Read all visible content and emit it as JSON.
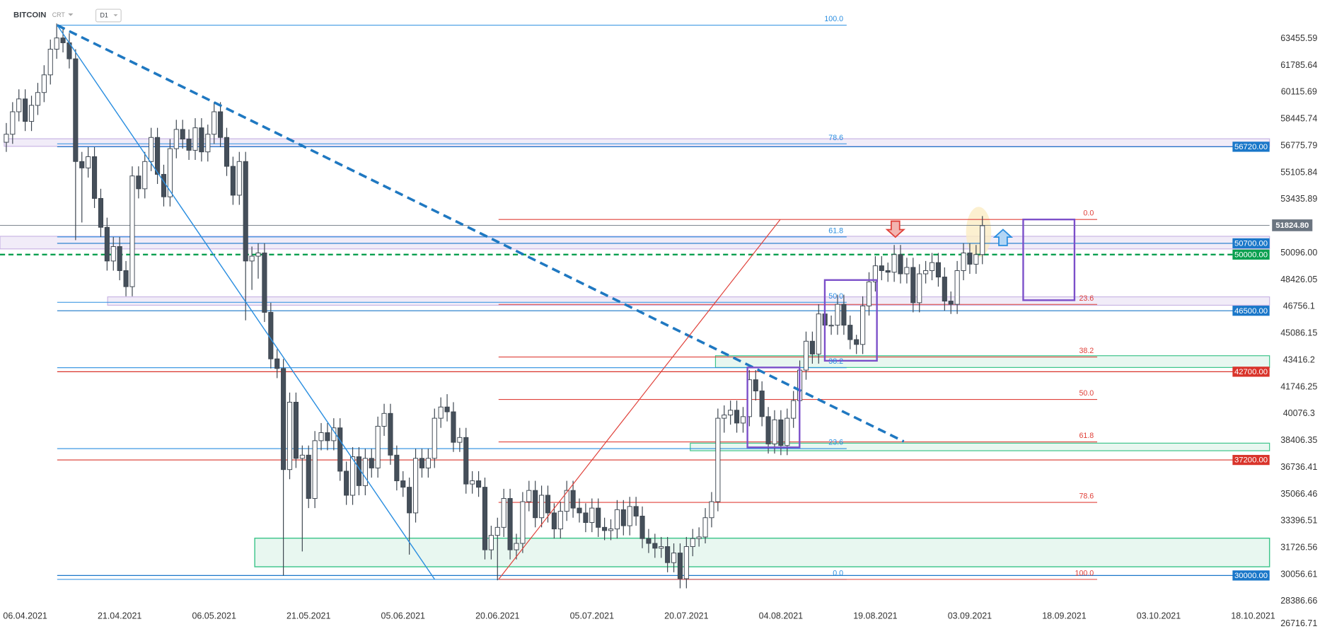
{
  "chart_data": {
    "type": "candlestick",
    "title": "BITCOIN",
    "instrument_type": "CRT",
    "interval": "D1",
    "up_color": "#ffffff",
    "down_color": "#454f5a",
    "wick_color": "#3d4650",
    "xlim": [
      -4,
      197.6
    ],
    "ylim": [
      26716.71,
      65866
    ],
    "xticks": [
      {
        "value": 0,
        "label": "06.04.2021"
      },
      {
        "value": 15,
        "label": "21.04.2021"
      },
      {
        "value": 30,
        "label": "06.05.2021"
      },
      {
        "value": 45,
        "label": "21.05.2021"
      },
      {
        "value": 60,
        "label": "05.06.2021"
      },
      {
        "value": 75,
        "label": "20.06.2021"
      },
      {
        "value": 90,
        "label": "05.07.2021"
      },
      {
        "value": 105,
        "label": "20.07.2021"
      },
      {
        "value": 120,
        "label": "04.08.2021"
      },
      {
        "value": 135,
        "label": "19.08.2021"
      },
      {
        "value": 150,
        "label": "03.09.2021"
      },
      {
        "value": 165,
        "label": "18.09.2021"
      },
      {
        "value": 180,
        "label": "03.10.2021"
      },
      {
        "value": 195,
        "label": "18.10.2021"
      }
    ],
    "yticks": [
      63455.59,
      61785.64,
      60115.69,
      58445.74,
      56775.79,
      55105.84,
      53435.89,
      {
        "value": 50096,
        "label": "50096.00"
      },
      48426.05,
      46756.1,
      45086.15,
      43416.2,
      41746.25,
      40076.3,
      38406.35,
      36736.41,
      35066.46,
      33396.51,
      31726.56,
      30056.61,
      28386.66,
      26716.71
    ],
    "last_price": {
      "value": 51824.8,
      "label": "51824.80",
      "color": "#6b7580"
    },
    "levels": [
      {
        "value": 56720,
        "label": "56720.00",
        "color": "#1a77c9"
      },
      {
        "value": 50700,
        "label": "50700.00",
        "color": "#1a77c9"
      },
      {
        "value": 50000,
        "label": "50000.00",
        "color": "#0aa050",
        "dashed": true
      },
      {
        "value": 46500,
        "label": "46500.00",
        "color": "#1a77c9"
      },
      {
        "value": 42700,
        "label": "42700.00",
        "color": "#d9342b"
      },
      {
        "value": 37200,
        "label": "37200.00",
        "color": "#d9342b"
      },
      {
        "value": 30000,
        "label": "30000.00",
        "color": "#1a77c9"
      }
    ],
    "fib_blue": {
      "color": "#2a8ee0",
      "levels": [
        {
          "label": "100.0",
          "value": 64294
        },
        {
          "label": "78.6",
          "value": 56903
        },
        {
          "label": "61.8",
          "value": 51101
        },
        {
          "label": "50.0",
          "value": 47025
        },
        {
          "label": "38.2",
          "value": 42950
        },
        {
          "label": "23.6",
          "value": 37907
        },
        {
          "label": "0.0",
          "value": 29756
        }
      ]
    },
    "fib_red": {
      "color": "#e0413a",
      "levels": [
        {
          "label": "0.0",
          "value": 52187
        },
        {
          "label": "23.6",
          "value": 46893
        },
        {
          "label": "38.2",
          "value": 43618
        },
        {
          "label": "50.0",
          "value": 40972
        },
        {
          "label": "61.8",
          "value": 38325
        },
        {
          "label": "78.6",
          "value": 34556
        },
        {
          "label": "100.0",
          "value": 29756
        }
      ]
    },
    "x": [
      -3,
      -2,
      -1,
      0,
      1,
      2,
      3,
      4,
      5,
      6,
      7,
      8,
      9,
      10,
      11,
      12,
      13,
      14,
      15,
      16,
      17,
      18,
      19,
      20,
      21,
      22,
      23,
      24,
      25,
      26,
      27,
      28,
      29,
      30,
      31,
      32,
      33,
      34,
      35,
      36,
      37,
      38,
      39,
      40,
      41,
      42,
      43,
      44,
      45,
      46,
      47,
      48,
      49,
      50,
      51,
      52,
      53,
      54,
      55,
      56,
      57,
      58,
      59,
      60,
      61,
      62,
      63,
      64,
      65,
      66,
      67,
      68,
      69,
      70,
      71,
      72,
      73,
      74,
      75,
      76,
      77,
      78,
      79,
      80,
      81,
      82,
      83,
      84,
      85,
      86,
      87,
      88,
      89,
      90,
      91,
      92,
      93,
      94,
      95,
      96,
      97,
      98,
      99,
      100,
      101,
      102,
      103,
      104,
      105,
      106,
      107,
      108,
      109,
      110,
      111,
      112,
      113,
      114,
      115,
      116,
      117,
      118,
      119,
      120,
      121,
      122,
      123,
      124,
      125,
      126,
      127,
      128,
      129,
      130,
      131,
      132,
      133,
      134,
      135,
      136,
      137,
      138,
      139,
      140,
      141,
      142,
      143,
      144,
      145,
      146,
      147,
      148,
      149,
      150,
      151,
      152
    ],
    "candles": [
      [
        57000,
        58200,
        56400,
        57500
      ],
      [
        57500,
        59500,
        56900,
        58900
      ],
      [
        58900,
        60300,
        58300,
        59700
      ],
      [
        59700,
        60300,
        57700,
        58300
      ],
      [
        58300,
        59900,
        57700,
        59300
      ],
      [
        59300,
        60700,
        58700,
        60100
      ],
      [
        60100,
        61800,
        59500,
        61200
      ],
      [
        61200,
        63400,
        60600,
        62800
      ],
      [
        62800,
        64400,
        62200,
        63500
      ],
      [
        63500,
        64100,
        62600,
        63200
      ],
      [
        63200,
        63800,
        61600,
        62200
      ],
      [
        62200,
        62800,
        50900,
        55800
      ],
      [
        55800,
        56400,
        52000,
        55400
      ],
      [
        55400,
        56700,
        54800,
        56100
      ],
      [
        56100,
        56700,
        52900,
        53500
      ],
      [
        53500,
        54100,
        51100,
        51700
      ],
      [
        51700,
        52300,
        49000,
        49600
      ],
      [
        49600,
        51100,
        49000,
        50500
      ],
      [
        50500,
        51100,
        48400,
        49000
      ],
      [
        49000,
        49600,
        47400,
        48000
      ],
      [
        48000,
        55500,
        47400,
        54900
      ],
      [
        54900,
        55500,
        53500,
        54100
      ],
      [
        54100,
        56400,
        53500,
        55800
      ],
      [
        55800,
        57900,
        55200,
        57300
      ],
      [
        57300,
        57900,
        54400,
        55000
      ],
      [
        55000,
        55600,
        53000,
        53600
      ],
      [
        53600,
        57200,
        53000,
        56600
      ],
      [
        56600,
        58400,
        56000,
        57800
      ],
      [
        57800,
        58400,
        56600,
        57200
      ],
      [
        57200,
        57800,
        55900,
        56500
      ],
      [
        56500,
        58500,
        55900,
        57900
      ],
      [
        57900,
        58500,
        55800,
        56400
      ],
      [
        56400,
        58100,
        55800,
        57500
      ],
      [
        57500,
        59500,
        56900,
        58900
      ],
      [
        58900,
        59500,
        56700,
        57300
      ],
      [
        57300,
        57900,
        54900,
        55500
      ],
      [
        55500,
        56100,
        53100,
        53700
      ],
      [
        53700,
        56400,
        53100,
        55800
      ],
      [
        55800,
        56400,
        45900,
        49600
      ],
      [
        49600,
        50500,
        47800,
        49900
      ],
      [
        49900,
        50700,
        48500,
        50100
      ],
      [
        50100,
        50700,
        45800,
        46400
      ],
      [
        46400,
        47000,
        42900,
        43500
      ],
      [
        43500,
        44100,
        42300,
        42900
      ],
      [
        42900,
        43500,
        30000,
        36600
      ],
      [
        36600,
        41400,
        36000,
        40800
      ],
      [
        40800,
        41400,
        36700,
        37300
      ],
      [
        37300,
        38100,
        31500,
        37500
      ],
      [
        37500,
        38100,
        34200,
        34800
      ],
      [
        34800,
        39000,
        34200,
        38400
      ],
      [
        38400,
        39500,
        37800,
        38900
      ],
      [
        38900,
        39500,
        37800,
        38400
      ],
      [
        38400,
        39800,
        37800,
        39200
      ],
      [
        39200,
        39800,
        35900,
        36500
      ],
      [
        36500,
        37100,
        34400,
        35000
      ],
      [
        35000,
        38000,
        34400,
        37400
      ],
      [
        37400,
        38000,
        35000,
        35600
      ],
      [
        35600,
        37900,
        35000,
        37300
      ],
      [
        37300,
        37900,
        36100,
        36700
      ],
      [
        36700,
        39900,
        36100,
        39300
      ],
      [
        39300,
        40700,
        38700,
        40100
      ],
      [
        40100,
        40700,
        36900,
        37500
      ],
      [
        37500,
        38100,
        35300,
        35900
      ],
      [
        35900,
        36500,
        34900,
        35500
      ],
      [
        35500,
        36100,
        31300,
        33900
      ],
      [
        33900,
        37900,
        33300,
        37300
      ],
      [
        37300,
        37900,
        36100,
        36700
      ],
      [
        36700,
        37900,
        36100,
        37300
      ],
      [
        37300,
        40400,
        36700,
        39800
      ],
      [
        39800,
        41100,
        39200,
        40500
      ],
      [
        40500,
        41300,
        39600,
        40200
      ],
      [
        40200,
        40800,
        37700,
        38300
      ],
      [
        38300,
        39200,
        37700,
        38600
      ],
      [
        38600,
        39200,
        35100,
        35700
      ],
      [
        35700,
        36500,
        35100,
        35900
      ],
      [
        35900,
        36500,
        34900,
        35500
      ],
      [
        35500,
        36100,
        31000,
        31600
      ],
      [
        31600,
        33100,
        31000,
        32500
      ],
      [
        32500,
        33600,
        29700,
        33000
      ],
      [
        33000,
        35400,
        32400,
        34800
      ],
      [
        34800,
        35400,
        31000,
        31600
      ],
      [
        31600,
        32600,
        31000,
        32000
      ],
      [
        32000,
        35200,
        31400,
        34600
      ],
      [
        34600,
        35900,
        34000,
        35300
      ],
      [
        35300,
        35900,
        33000,
        33600
      ],
      [
        33600,
        35600,
        33000,
        35000
      ],
      [
        35000,
        35600,
        33300,
        33900
      ],
      [
        33900,
        34500,
        32300,
        32900
      ],
      [
        32900,
        34600,
        32300,
        34000
      ],
      [
        34000,
        35900,
        33400,
        35300
      ],
      [
        35300,
        35900,
        33600,
        34200
      ],
      [
        34200,
        34800,
        33300,
        33900
      ],
      [
        33900,
        34500,
        32700,
        33300
      ],
      [
        33300,
        34800,
        32700,
        34200
      ],
      [
        34200,
        34800,
        32400,
        33000
      ],
      [
        33000,
        33600,
        32200,
        32800
      ],
      [
        32800,
        33500,
        32200,
        32900
      ],
      [
        32900,
        34700,
        32300,
        34100
      ],
      [
        34100,
        34700,
        32500,
        33100
      ],
      [
        33100,
        34900,
        32500,
        34300
      ],
      [
        34300,
        34900,
        33100,
        33700
      ],
      [
        33700,
        34300,
        31700,
        32300
      ],
      [
        32300,
        32900,
        31400,
        32000
      ],
      [
        32000,
        32600,
        31100,
        31700
      ],
      [
        31700,
        32400,
        31100,
        31800
      ],
      [
        31800,
        32400,
        30200,
        30800
      ],
      [
        30800,
        32000,
        30200,
        31400
      ],
      [
        31400,
        32000,
        29200,
        29800
      ],
      [
        29800,
        32400,
        29200,
        31800
      ],
      [
        31800,
        32900,
        31200,
        32300
      ],
      [
        32300,
        33000,
        31800,
        32400
      ],
      [
        32400,
        34200,
        32000,
        33600
      ],
      [
        33600,
        35200,
        33000,
        34600
      ],
      [
        34600,
        40400,
        34000,
        39800
      ],
      [
        39800,
        40600,
        38900,
        40000
      ],
      [
        40000,
        40900,
        39400,
        40300
      ],
      [
        40300,
        40900,
        38900,
        39500
      ],
      [
        39500,
        40500,
        38900,
        39900
      ],
      [
        39900,
        42800,
        39300,
        42200
      ],
      [
        42200,
        42800,
        40900,
        41500
      ],
      [
        41500,
        42100,
        39300,
        39900
      ],
      [
        39900,
        40500,
        37600,
        38200
      ],
      [
        38200,
        40300,
        37600,
        39700
      ],
      [
        39700,
        40300,
        37500,
        38100
      ],
      [
        38100,
        40400,
        37500,
        39800
      ],
      [
        39800,
        41500,
        39200,
        40900
      ],
      [
        40900,
        43400,
        40300,
        42800
      ],
      [
        42800,
        45200,
        42200,
        44600
      ],
      [
        44600,
        45200,
        43200,
        43800
      ],
      [
        43800,
        46900,
        43200,
        46300
      ],
      [
        46300,
        46900,
        45000,
        45600
      ],
      [
        45600,
        46200,
        45000,
        45600
      ],
      [
        45600,
        47500,
        45000,
        46900
      ],
      [
        46900,
        47500,
        45000,
        45600
      ],
      [
        45600,
        46200,
        44100,
        44700
      ],
      [
        44700,
        45000,
        43800,
        44400
      ],
      [
        44400,
        47400,
        43800,
        46800
      ],
      [
        46800,
        48900,
        46200,
        48300
      ],
      [
        48300,
        49900,
        47700,
        49300
      ],
      [
        49300,
        49900,
        48400,
        49000
      ],
      [
        49000,
        49500,
        48300,
        48900
      ],
      [
        48900,
        50600,
        48300,
        50000
      ],
      [
        50000,
        50600,
        48200,
        48800
      ],
      [
        48800,
        49800,
        48200,
        49200
      ],
      [
        49200,
        49800,
        46400,
        47000
      ],
      [
        47000,
        49400,
        46400,
        48800
      ],
      [
        48800,
        49600,
        48200,
        49000
      ],
      [
        49000,
        50100,
        48400,
        49500
      ],
      [
        49500,
        50100,
        48000,
        48600
      ],
      [
        48600,
        49200,
        46500,
        47100
      ],
      [
        47100,
        47700,
        46300,
        46900
      ],
      [
        46900,
        49600,
        46300,
        49000
      ],
      [
        49000,
        50700,
        48400,
        50100
      ],
      [
        50100,
        50700,
        48800,
        49400
      ],
      [
        49400,
        50600,
        48800,
        50000
      ],
      [
        50000,
        52400,
        49400,
        51800
      ]
    ]
  }
}
